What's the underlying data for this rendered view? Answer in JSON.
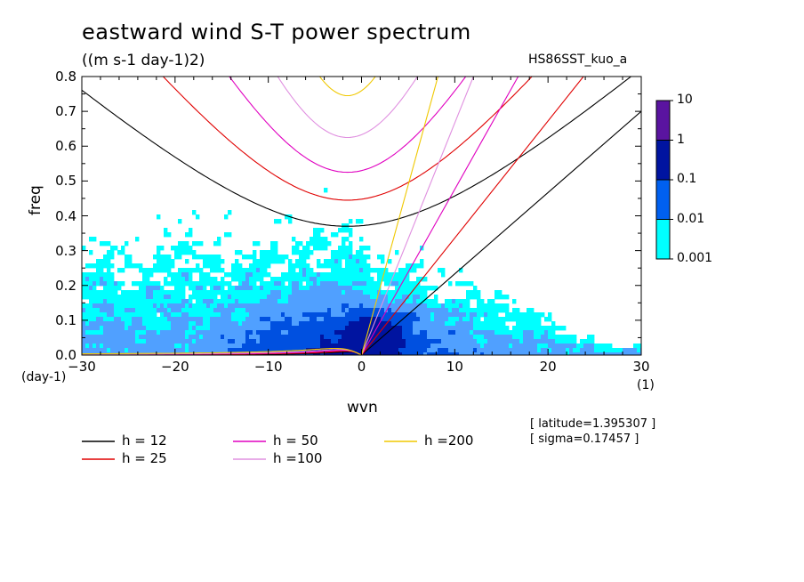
{
  "title": "eastward wind S-T power spectrum",
  "units": "((m s-1 day-1)2)",
  "experiment": "HS86SST_kuo_a",
  "y_unit_label": "(day-1)",
  "x_unit_label": "(1)",
  "info": {
    "latitude": "[ latitude=1.395307 ]",
    "sigma": "[ sigma=0.17457 ]"
  },
  "legend": [
    {
      "label": "h = 12",
      "color": "#000000"
    },
    {
      "label": "h = 25",
      "color": "#e00000"
    },
    {
      "label": "h = 50",
      "color": "#e000c0"
    },
    {
      "label": "h =100",
      "color": "#e090e0"
    },
    {
      "label": "h =200",
      "color": "#f0c800"
    }
  ],
  "colorbar": {
    "levels": [
      "10",
      "1",
      "0.1",
      "0.01",
      "0.001"
    ],
    "colors": [
      "#5a14a0",
      "#0014a0",
      "#0050e0",
      "#50a0ff",
      "#00ffff"
    ]
  },
  "chart_data": {
    "type": "heatmap",
    "title": "eastward wind S-T power spectrum",
    "subtitle": "((m s-1 day-1)2)",
    "xlabel": "wvn",
    "ylabel": "freq",
    "xlim": [
      -30,
      30
    ],
    "ylim": [
      0,
      0.8
    ],
    "xticks": [
      -30,
      -20,
      -10,
      0,
      10,
      20,
      30
    ],
    "yticks": [
      0.0,
      0.1,
      0.2,
      0.3,
      0.4,
      0.5,
      0.6,
      0.7,
      0.8
    ],
    "xtick_labels": [
      "-30",
      "-20",
      "-10",
      "0",
      "10",
      "20",
      "30"
    ],
    "ytick_labels": [
      "0.0",
      "0.1",
      "0.2",
      "0.3",
      "0.4",
      "0.5",
      "0.6",
      "0.7",
      "0.8"
    ],
    "contour_levels": [
      0.001,
      0.01,
      0.1,
      1,
      10
    ],
    "dispersion_curves": {
      "equivalent_depths_m": [
        12,
        25,
        50,
        100,
        200
      ],
      "families": [
        "kelvin",
        "rossby",
        "inertia_gravity"
      ],
      "kelvin_wave_slope": [
        {
          "h": 12,
          "x": [
            0,
            30
          ],
          "y": [
            0,
            0.7
          ]
        },
        {
          "h": 25,
          "x": [
            0,
            23.8
          ],
          "y": [
            0,
            0.8
          ]
        },
        {
          "h": 50,
          "x": [
            0,
            16.8
          ],
          "y": [
            0,
            0.8
          ]
        },
        {
          "h": 100,
          "x": [
            0,
            12.0
          ],
          "y": [
            0,
            0.8
          ]
        },
        {
          "h": 200,
          "x": [
            0,
            8.2
          ],
          "y": [
            0,
            0.8
          ]
        }
      ],
      "ig_minimum": [
        {
          "h": 12,
          "x": -1.5,
          "y": 0.37
        },
        {
          "h": 25,
          "x": -1.5,
          "y": 0.445
        },
        {
          "h": 50,
          "x": -1.5,
          "y": 0.525
        },
        {
          "h": 100,
          "x": -1.5,
          "y": 0.625
        },
        {
          "h": 200,
          "x": -1.5,
          "y": 0.745
        }
      ]
    }
  }
}
